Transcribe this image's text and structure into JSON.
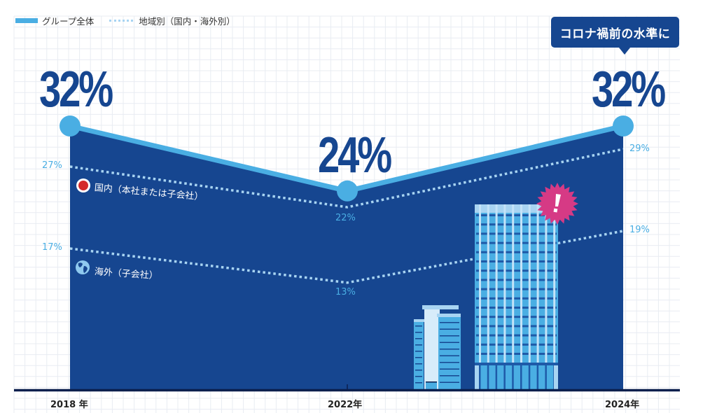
{
  "legend": {
    "group_label": "グループ全体",
    "region_label": "地域別（国内・海外別）"
  },
  "callout": {
    "text": "コロナ禍前の水準に"
  },
  "colors": {
    "area_fill": "#164690",
    "group_line": "#4aaee3",
    "dotted_line": "#a8d4f2",
    "axis": "#0b1f4d",
    "grid": "#e8ecf2",
    "burst": "#d63a85",
    "domestic_dot": "#d42a2a"
  },
  "series_labels": {
    "domestic": "国内（本社または子会社）",
    "overseas": "海外（子会社）"
  },
  "icons": {
    "domestic": "red-dot-icon",
    "overseas": "globe-icon",
    "alert": "exclamation-burst-icon",
    "buildings": "office-buildings-illustration"
  },
  "chart_data": {
    "type": "area",
    "title": "",
    "xlabel": "",
    "ylabel": "",
    "categories": [
      "2018 年",
      "2022年",
      "2024年"
    ],
    "ylim": [
      0,
      34
    ],
    "grid": true,
    "legend": "top-left",
    "series": [
      {
        "name": "グループ全体",
        "values": [
          32,
          24,
          32
        ],
        "labels": [
          "32%",
          "24%",
          "32%"
        ],
        "style": "area-solid"
      },
      {
        "name": "国内（本社または子会社）",
        "values": [
          27,
          22,
          29
        ],
        "labels": [
          "27%",
          "22%",
          "29%"
        ],
        "style": "dotted"
      },
      {
        "name": "海外（子会社）",
        "values": [
          17,
          13,
          19
        ],
        "labels": [
          "17%",
          "13%",
          "19%"
        ],
        "style": "dotted"
      }
    ],
    "annotations": [
      "コロナ禍前の水準に"
    ]
  }
}
